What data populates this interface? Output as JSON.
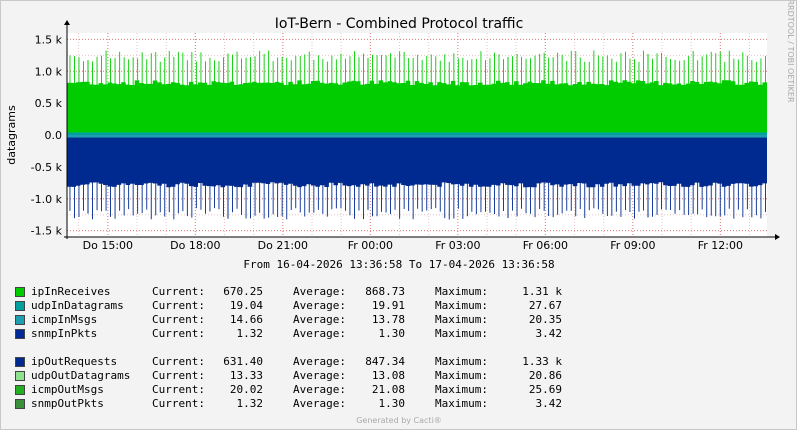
{
  "chart_data": {
    "type": "area",
    "title": "IoT-Bern - Combined Protocol traffic",
    "ylabel": "datagrams",
    "xlabel": "",
    "ylim": [
      -1600,
      1600
    ],
    "y_ticks": [
      {
        "value": 1500,
        "label": "1.5 k"
      },
      {
        "value": 1000,
        "label": "1.0 k"
      },
      {
        "value": 500,
        "label": "0.5 k"
      },
      {
        "value": 0,
        "label": "0.0"
      },
      {
        "value": -500,
        "label": "-0.5 k"
      },
      {
        "value": -1000,
        "label": "-1.0 k"
      },
      {
        "value": -1500,
        "label": "-1.5 k"
      }
    ],
    "x_hours_range": [
      13.6,
      37.6
    ],
    "x_ticks": [
      {
        "hour": 15,
        "label": "Do 15:00"
      },
      {
        "hour": 18,
        "label": "Do 18:00"
      },
      {
        "hour": 21,
        "label": "Do 21:00"
      },
      {
        "hour": 24,
        "label": "Fr 00:00"
      },
      {
        "hour": 27,
        "label": "Fr 03:00"
      },
      {
        "hour": 30,
        "label": "Fr 06:00"
      },
      {
        "hour": 33,
        "label": "Fr 09:00"
      },
      {
        "hour": 36,
        "label": "Fr 12:00"
      }
    ],
    "grid": true,
    "inbound_base": 820,
    "inbound_spike": 1200,
    "outbound_base": -780,
    "outbound_spike": -1200,
    "spike_count": 155,
    "side_text": "RRDTOOL / TOBI OETIKER",
    "period_text": "From 16-04-2026 13:36:58 To 17-04-2026 13:36:58",
    "footer": "Generated by Cacti®",
    "series": [
      {
        "name": "ipInReceives",
        "color": "#00cc00",
        "current": "670.25",
        "average": "868.73",
        "maximum": "1.31 k"
      },
      {
        "name": "udpInDatagrams",
        "color": "#00a0a0",
        "current": "19.04",
        "average": "19.91",
        "maximum": "27.67"
      },
      {
        "name": "icmpInMsgs",
        "color": "#1d9fb0",
        "current": "14.66",
        "average": "13.78",
        "maximum": "20.35"
      },
      {
        "name": "snmpInPkts",
        "color": "#002a97",
        "current": "1.32",
        "average": "1.30",
        "maximum": "3.42"
      },
      {
        "name": "ipOutRequests",
        "color": "#002a8f",
        "current": "631.40",
        "average": "847.34",
        "maximum": "1.33 k"
      },
      {
        "name": "udpOutDatagrams",
        "color": "#8fe08f",
        "current": "13.33",
        "average": "13.08",
        "maximum": "20.86"
      },
      {
        "name": "icmpOutMsgs",
        "color": "#22b022",
        "current": "20.02",
        "average": "21.08",
        "maximum": "25.69"
      },
      {
        "name": "snmpOutPkts",
        "color": "#3a8f3a",
        "current": "1.32",
        "average": "1.30",
        "maximum": "3.42"
      }
    ]
  },
  "legend": {
    "current_label": "Current:",
    "average_label": "Average:",
    "maximum_label": "Maximum:"
  }
}
